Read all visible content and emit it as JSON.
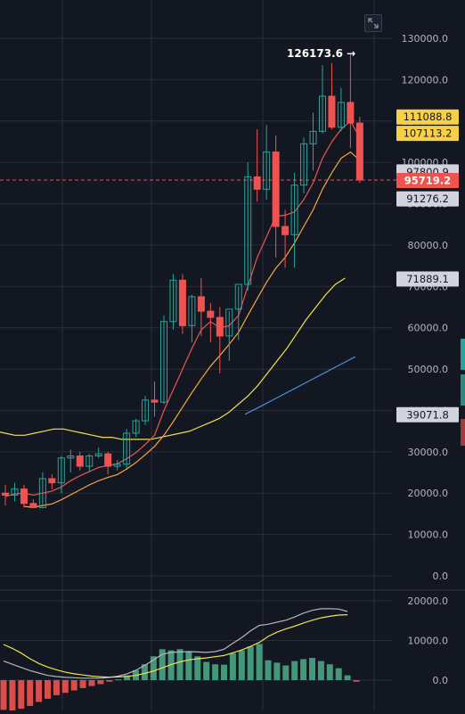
{
  "toolbar": {
    "fullscreen_icon": "expand-icon"
  },
  "chart_data": {
    "type": "candlestick",
    "ylim": [
      0,
      140000
    ],
    "y_ticks": [
      "130000.0",
      "120000.0",
      "110000.0",
      "100000.0",
      "90000.0",
      "80000.0",
      "70000.0",
      "60000.0",
      "50000.0",
      "40000.0",
      "30000.0",
      "20000.0",
      "10000.0",
      "0.0"
    ],
    "candles": [
      {
        "o": 20000,
        "h": 22000,
        "l": 17000,
        "c": 19500
      },
      {
        "o": 19500,
        "h": 22500,
        "l": 18000,
        "c": 21000
      },
      {
        "o": 21000,
        "h": 22000,
        "l": 16500,
        "c": 17500
      },
      {
        "o": 17500,
        "h": 18500,
        "l": 16500,
        "c": 16500
      },
      {
        "o": 16500,
        "h": 25000,
        "l": 16500,
        "c": 23500
      },
      {
        "o": 23500,
        "h": 24500,
        "l": 21000,
        "c": 22500
      },
      {
        "o": 22500,
        "h": 29000,
        "l": 20000,
        "c": 28500
      },
      {
        "o": 28500,
        "h": 30500,
        "l": 25000,
        "c": 29000
      },
      {
        "o": 29000,
        "h": 30000,
        "l": 25500,
        "c": 26500
      },
      {
        "o": 26500,
        "h": 29500,
        "l": 25000,
        "c": 29000
      },
      {
        "o": 29000,
        "h": 31000,
        "l": 28500,
        "c": 29500
      },
      {
        "o": 29500,
        "h": 30000,
        "l": 24500,
        "c": 26500
      },
      {
        "o": 26500,
        "h": 28000,
        "l": 25500,
        "c": 27000
      },
      {
        "o": 27000,
        "h": 35500,
        "l": 26000,
        "c": 34500
      },
      {
        "o": 34500,
        "h": 38000,
        "l": 33500,
        "c": 37500
      },
      {
        "o": 37500,
        "h": 43500,
        "l": 36500,
        "c": 42500
      },
      {
        "o": 42500,
        "h": 47000,
        "l": 38500,
        "c": 42000
      },
      {
        "o": 42000,
        "h": 63000,
        "l": 41500,
        "c": 61500
      },
      {
        "o": 61500,
        "h": 73000,
        "l": 59500,
        "c": 71500
      },
      {
        "o": 71500,
        "h": 73000,
        "l": 58500,
        "c": 60500
      },
      {
        "o": 60500,
        "h": 68000,
        "l": 56500,
        "c": 67500
      },
      {
        "o": 67500,
        "h": 72000,
        "l": 58000,
        "c": 64000
      },
      {
        "o": 64000,
        "h": 66000,
        "l": 56500,
        "c": 62500
      },
      {
        "o": 62500,
        "h": 65000,
        "l": 49000,
        "c": 58000
      },
      {
        "o": 58000,
        "h": 64000,
        "l": 52000,
        "c": 64500
      },
      {
        "o": 64500,
        "h": 70000,
        "l": 57000,
        "c": 70500
      },
      {
        "o": 70500,
        "h": 100000,
        "l": 69000,
        "c": 96500
      },
      {
        "o": 96500,
        "h": 108000,
        "l": 90500,
        "c": 93500
      },
      {
        "o": 93500,
        "h": 109000,
        "l": 91000,
        "c": 102500
      },
      {
        "o": 102500,
        "h": 106500,
        "l": 77000,
        "c": 84500
      },
      {
        "o": 84500,
        "h": 88500,
        "l": 74500,
        "c": 82500
      },
      {
        "o": 82500,
        "h": 97500,
        "l": 74500,
        "c": 94500
      },
      {
        "o": 94500,
        "h": 106000,
        "l": 92500,
        "c": 104500
      },
      {
        "o": 104500,
        "h": 112000,
        "l": 98000,
        "c": 107500
      },
      {
        "o": 107500,
        "h": 123500,
        "l": 107000,
        "c": 116000
      },
      {
        "o": 116000,
        "h": 124000,
        "l": 108000,
        "c": 108500
      },
      {
        "o": 108500,
        "h": 118000,
        "l": 107500,
        "c": 114500
      },
      {
        "o": 114500,
        "h": 126173.6,
        "l": 103500,
        "c": 109500
      },
      {
        "o": 109500,
        "h": 111000,
        "l": 95000,
        "c": 95719.2
      }
    ],
    "ma_fast": [
      19200,
      19800,
      20000,
      19500,
      20000,
      20500,
      21500,
      23000,
      24200,
      25200,
      26200,
      26700,
      27100,
      28300,
      29800,
      31800,
      34000,
      40000,
      45000,
      50000,
      55000,
      59500,
      61500,
      60000,
      60500,
      63000,
      70000,
      77000,
      82000,
      87000,
      87200,
      88000,
      91000,
      95000,
      101000,
      105000,
      108000,
      110000,
      106000
    ],
    "ma_mid": [
      null,
      null,
      16800,
      16600,
      17000,
      17400,
      18400,
      19600,
      20800,
      22000,
      23000,
      23800,
      24500,
      25800,
      27400,
      29300,
      31300,
      34000,
      37300,
      40800,
      44300,
      47600,
      50700,
      53300,
      56000,
      58900,
      63000,
      67000,
      71000,
      74400,
      77000,
      80500,
      84500,
      88500,
      93500,
      97500,
      101000,
      102500,
      100500
    ],
    "ma_long": [
      35000,
      34500,
      34000,
      34000,
      34500,
      35000,
      35500,
      35500,
      35000,
      34500,
      34000,
      33500,
      33500,
      33000,
      33000,
      33000,
      33000,
      33500,
      34000,
      34500,
      35000,
      36000,
      37000,
      38000,
      39500,
      41500,
      43500,
      46000,
      49000,
      52000,
      55000,
      58500,
      62000,
      65000,
      68000,
      70500,
      72000
    ],
    "ma_extra": [
      39071.8,
      41000,
      43000,
      45000,
      47000,
      49000,
      51000,
      53000
    ],
    "current_price": 95719.2,
    "high_label": "126173.6 →",
    "price_labels": [
      {
        "value": 111088.8,
        "text": "111088.8",
        "color": "#f7d046"
      },
      {
        "value": 107113.2,
        "text": "107113.2",
        "color": "#f7d046"
      },
      {
        "value": 97800.9,
        "text": "97800.9",
        "color": "#d1d4dc"
      },
      {
        "value": 95719.2,
        "text": "95719.2",
        "color": "#ef5350"
      },
      {
        "value": 91276.2,
        "text": "91276.2",
        "color": "#d1d4dc"
      },
      {
        "value": 71889.1,
        "text": "71889.1",
        "color": "#d1d4dc"
      },
      {
        "value": 39071.8,
        "text": "39071.8",
        "color": "#d1d4dc"
      }
    ],
    "macd": {
      "ylim": [
        -4000,
        22000
      ],
      "y_ticks": [
        "20000.0",
        "10000.0",
        "0.0"
      ],
      "histogram": [
        -7500,
        -7800,
        -7200,
        -6500,
        -5500,
        -4700,
        -3800,
        -3200,
        -2600,
        -2000,
        -1500,
        -1000,
        -400,
        200,
        1200,
        2500,
        4000,
        6000,
        7800,
        7500,
        7800,
        7200,
        6000,
        4600,
        4000,
        3900,
        6800,
        7500,
        8500,
        9100,
        5000,
        4400,
        3700,
        4800,
        5300,
        5600,
        4800,
        4000,
        3000,
        1200,
        -400
      ],
      "macd_line": [
        4800,
        4000,
        3200,
        2400,
        1800,
        1200,
        900,
        700,
        600,
        500,
        500,
        500,
        700,
        1000,
        1600,
        2500,
        3700,
        5100,
        6500,
        7000,
        7100,
        7200,
        7100,
        7000,
        7200,
        7800,
        9300,
        10700,
        12400,
        13800,
        14100,
        14600,
        15100,
        15900,
        16900,
        17600,
        18000,
        18000,
        17900,
        17300
      ],
      "signal_line": [
        9000,
        8000,
        6800,
        5400,
        4200,
        3300,
        2600,
        2000,
        1600,
        1300,
        1000,
        850,
        750,
        800,
        950,
        1200,
        1700,
        2300,
        3100,
        3900,
        4600,
        5100,
        5400,
        5600,
        5900,
        6200,
        6900,
        7600,
        8500,
        9500,
        11000,
        12100,
        12900,
        13600,
        14400,
        15100,
        15700,
        16100,
        16400,
        16500
      ]
    },
    "colors": {
      "up": "#26a69a",
      "down": "#ef5350",
      "ma_fast": "#ef5350",
      "ma_mid": "#f7a541",
      "ma_long": "#f2e24c",
      "ma_extra": "#4a90d9",
      "macd_line": "#b2b5be",
      "signal_line": "#f2e24c",
      "grid": "#2a2e39",
      "axis_text": "#b2b5be"
    }
  }
}
